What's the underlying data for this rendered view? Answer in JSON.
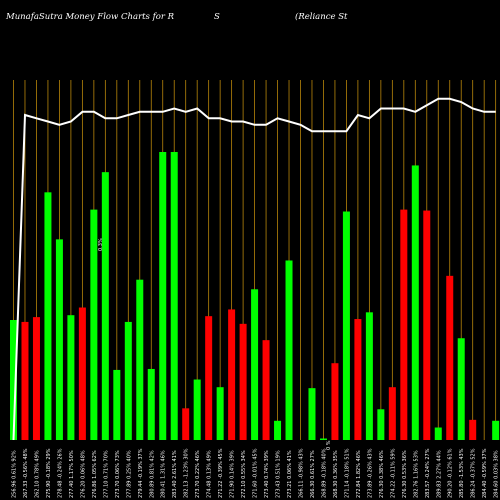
{
  "title": {
    "left": "MunafaSutra  Money Flow  Charts for R",
    "middle": "S",
    "right": "(Reliance   St"
  },
  "colors": {
    "background": "#000000",
    "up_bar": "#00ff00",
    "down_bar": "#ff0000",
    "gridline": "#b8860b",
    "price_line": "#ffffff"
  },
  "chart_data": {
    "type": "bar",
    "overlay": "line",
    "grid": true,
    "bar_scale_max": 300,
    "line_scale": [
      0,
      100
    ],
    "series": [
      {
        "directions": [
          "up",
          "down",
          "down",
          "up",
          "up",
          "up",
          "down",
          "up",
          "up",
          "up",
          "up",
          "up",
          "up",
          "up",
          "up",
          "down",
          "up",
          "down",
          "up",
          "down",
          "down",
          "up",
          "down",
          "up",
          "up",
          "down",
          "up",
          "up",
          "down",
          "up",
          "down",
          "up",
          "up",
          "down",
          "down",
          "up",
          "down",
          "up",
          "down",
          "up",
          "down",
          "down",
          "up"
        ],
        "values": [
          125,
          123,
          128,
          258,
          209,
          130,
          138,
          240,
          279,
          73,
          123,
          167,
          74,
          300,
          300,
          33,
          63,
          129,
          55,
          136,
          121,
          157,
          104,
          20,
          187,
          0,
          54,
          0,
          80,
          238,
          126,
          133,
          32,
          55,
          240,
          286,
          239,
          13,
          171,
          106,
          21,
          0,
          20
        ]
      },
      {
        "values": [
          0,
          100,
          99,
          98,
          97,
          98,
          101,
          101,
          99,
          99,
          100,
          101,
          101,
          101,
          102,
          101,
          102,
          99,
          99,
          98,
          98,
          97,
          97,
          99,
          98,
          97,
          95,
          95,
          95,
          95,
          100,
          99,
          102,
          102,
          102,
          101,
          103,
          105,
          105,
          104,
          102,
          101,
          101
        ]
      }
    ],
    "x_tick_labels": [
      "256.96 0.61% 92%",
      "267.33 -0.56% 48%",
      "262.10 0.78% 49%",
      "275.90 -0.18% 29%",
      "278.48 -0.24% 26%",
      "277.40 1.17% 50%",
      "276.20 0.06% 48%",
      "276.86 1.05% 62%",
      "277.10 0.71% 70%",
      "273.70 0.06% 73%",
      "277.89 0.25% 40%",
      "279.44 -0.19% 37%",
      "280.89 0.81% 42%",
      "280.41 1.31% 46%",
      "283.40 2.61% 41%",
      "282.13 -1.23% 30%",
      "273.70 0.22% 46%",
      "274.48 0.13% 49%",
      "271.22 -0.39% 45%",
      "271.90 0.14% 39%",
      "272.10 0.55% 34%",
      "271.60 -0.01% 45%",
      "273.40 0.74% 39%",
      "273.43 0.51% 19%",
      "273.21 0.06% 41%",
      "266.11 -0.98% 43%",
      "266.30 0.61% 27%",
      "268.89 -0.18% 40%",
      "268.30 0.36% 35%",
      "271.14 -0.18% 51%",
      "272.84 1.82% 46%",
      "273.89 -0.26% 43%",
      "276.30 0.38% 46%",
      "274.22 -0.11% 59%",
      "276.30 0.53% 36%",
      "282.76 1.16% 53%",
      "283.57 -0.24% 27%",
      "289.83 2.27% 44%",
      "290.20 -0.12% 61%",
      "285.80 -1.53% 43%",
      "286.24 -0.37% 52%",
      "284.40 -0.59% 37%",
      "284.60 0.03% 38%"
    ],
    "midline_label": "0.3%",
    "bottom_label": "0 %"
  }
}
